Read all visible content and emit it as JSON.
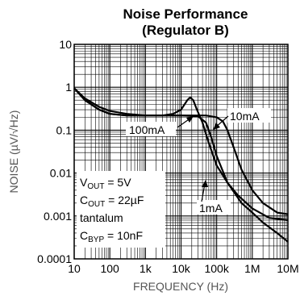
{
  "chart_data": {
    "type": "line",
    "title_lines": [
      "Noise Performance",
      "(Regulator B)"
    ],
    "xlabel": "FREQUENCY (Hz)",
    "ylabel": "NOISE (µV/√Hz)",
    "x_scale": "log",
    "y_scale": "log",
    "xlim": [
      10,
      10000000
    ],
    "ylim": [
      0.0001,
      10
    ],
    "grid": true,
    "x_ticks": [
      {
        "value": 10,
        "label": "10"
      },
      {
        "value": 100,
        "label": "100"
      },
      {
        "value": 1000,
        "label": "1k"
      },
      {
        "value": 10000,
        "label": "10k"
      },
      {
        "value": 100000,
        "label": "100k"
      },
      {
        "value": 1000000,
        "label": "1M"
      },
      {
        "value": 10000000,
        "label": "10M"
      }
    ],
    "y_ticks": [
      {
        "value": 10,
        "label": "10"
      },
      {
        "value": 1,
        "label": "1"
      },
      {
        "value": 0.1,
        "label": "0.1"
      },
      {
        "value": 0.01,
        "label": "0.01"
      },
      {
        "value": 0.001,
        "label": "0.001"
      },
      {
        "value": 0.0001,
        "label": "0.0001"
      }
    ],
    "series": [
      {
        "name": "100mA",
        "points": [
          [
            10,
            0.95
          ],
          [
            20,
            0.55
          ],
          [
            50,
            0.35
          ],
          [
            100,
            0.28
          ],
          [
            300,
            0.24
          ],
          [
            1000,
            0.22
          ],
          [
            3000,
            0.22
          ],
          [
            6000,
            0.24
          ],
          [
            10000,
            0.3
          ],
          [
            15000,
            0.5
          ],
          [
            18000,
            0.58
          ],
          [
            22000,
            0.5
          ],
          [
            28000,
            0.3
          ],
          [
            40000,
            0.15
          ],
          [
            60000,
            0.05
          ],
          [
            100000,
            0.015
          ],
          [
            200000,
            0.006
          ],
          [
            400000,
            0.003
          ],
          [
            1000000,
            0.0015
          ],
          [
            3000000,
            0.0009
          ],
          [
            10000000,
            0.0008
          ]
        ]
      },
      {
        "name": "10mA",
        "points": [
          [
            10,
            0.95
          ],
          [
            20,
            0.5
          ],
          [
            50,
            0.3
          ],
          [
            100,
            0.24
          ],
          [
            300,
            0.22
          ],
          [
            1000,
            0.22
          ],
          [
            3000,
            0.22
          ],
          [
            10000,
            0.22
          ],
          [
            20000,
            0.22
          ],
          [
            50000,
            0.22
          ],
          [
            100000,
            0.2
          ],
          [
            150000,
            0.16
          ],
          [
            200000,
            0.1
          ],
          [
            300000,
            0.04
          ],
          [
            500000,
            0.012
          ],
          [
            1000000,
            0.004
          ],
          [
            2000000,
            0.002
          ],
          [
            5000000,
            0.0012
          ],
          [
            10000000,
            0.0011
          ]
        ]
      },
      {
        "name": "1mA",
        "points": [
          [
            10,
            0.95
          ],
          [
            20,
            0.5
          ],
          [
            50,
            0.3
          ],
          [
            100,
            0.24
          ],
          [
            300,
            0.22
          ],
          [
            1000,
            0.22
          ],
          [
            3000,
            0.22
          ],
          [
            10000,
            0.22
          ],
          [
            30000,
            0.21
          ],
          [
            50000,
            0.15
          ],
          [
            70000,
            0.07
          ],
          [
            100000,
            0.025
          ],
          [
            200000,
            0.006
          ],
          [
            500000,
            0.002
          ],
          [
            1000000,
            0.0012
          ],
          [
            2000000,
            0.0007
          ],
          [
            5000000,
            0.0004
          ],
          [
            10000000,
            0.00025
          ]
        ]
      }
    ],
    "annotations": [
      {
        "text_lines": [
          "V_OUT = 5V",
          "C_OUT = 22µF",
          "tantalum",
          "C_BYP = 10nF"
        ]
      }
    ]
  }
}
